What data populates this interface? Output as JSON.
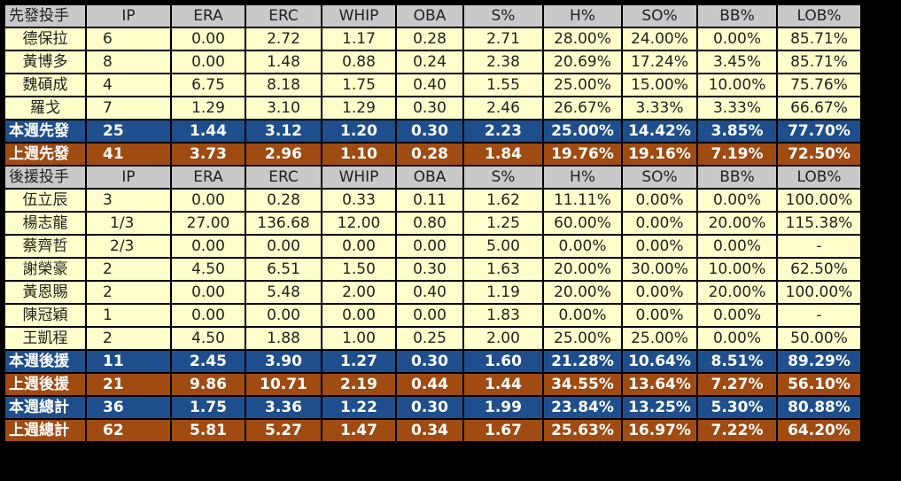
{
  "headers": {
    "starters": [
      "先發投手",
      "IP",
      "ERA",
      "ERC",
      "WHIP",
      "OBA",
      "S%",
      "H%",
      "SO%",
      "BB%",
      "LOB%"
    ],
    "relievers": [
      "後援投手",
      "IP",
      "ERA",
      "ERC",
      "WHIP",
      "OBA",
      "S%",
      "H%",
      "SO%",
      "BB%",
      "LOB%"
    ]
  },
  "starters": [
    [
      "德保拉",
      "6",
      "0.00",
      "2.72",
      "1.17",
      "0.28",
      "2.71",
      "28.00%",
      "24.00%",
      "0.00%",
      "85.71%"
    ],
    [
      "黃博多",
      "8",
      "0.00",
      "1.48",
      "0.88",
      "0.24",
      "2.38",
      "20.69%",
      "17.24%",
      "3.45%",
      "85.71%"
    ],
    [
      "魏碩成",
      "4",
      "6.75",
      "8.18",
      "1.75",
      "0.40",
      "1.55",
      "25.00%",
      "15.00%",
      "10.00%",
      "75.76%"
    ],
    [
      "羅戈",
      "7",
      "1.29",
      "3.10",
      "1.29",
      "0.30",
      "2.46",
      "26.67%",
      "3.33%",
      "3.33%",
      "66.67%"
    ]
  ],
  "starters_this_week": [
    "本週先發",
    "25",
    "1.44",
    "3.12",
    "1.20",
    "0.30",
    "2.23",
    "25.00%",
    "14.42%",
    "3.85%",
    "77.70%"
  ],
  "starters_last_week": [
    "上週先發",
    "41",
    "3.73",
    "2.96",
    "1.10",
    "0.28",
    "1.84",
    "19.76%",
    "19.16%",
    "7.19%",
    "72.50%"
  ],
  "relievers": [
    [
      "伍立辰",
      "3",
      "0.00",
      "0.28",
      "0.33",
      "0.11",
      "1.62",
      "11.11%",
      "0.00%",
      "0.00%",
      "100.00%"
    ],
    [
      "楊志龍",
      "1/3",
      "27.00",
      "136.68",
      "12.00",
      "0.80",
      "1.25",
      "60.00%",
      "0.00%",
      "20.00%",
      "115.38%"
    ],
    [
      "蔡齊哲",
      "2/3",
      "0.00",
      "0.00",
      "0.00",
      "0.00",
      "5.00",
      "0.00%",
      "0.00%",
      "0.00%",
      "-"
    ],
    [
      "謝榮豪",
      "2",
      "4.50",
      "6.51",
      "1.50",
      "0.30",
      "1.63",
      "20.00%",
      "30.00%",
      "10.00%",
      "62.50%"
    ],
    [
      "黃恩賜",
      "2",
      "0.00",
      "5.48",
      "2.00",
      "0.40",
      "1.19",
      "20.00%",
      "0.00%",
      "20.00%",
      "100.00%"
    ],
    [
      "陳冠穎",
      "1",
      "0.00",
      "0.00",
      "0.00",
      "0.00",
      "1.83",
      "0.00%",
      "0.00%",
      "0.00%",
      "-"
    ],
    [
      "王凱程",
      "2",
      "4.50",
      "1.88",
      "1.00",
      "0.25",
      "2.00",
      "25.00%",
      "25.00%",
      "0.00%",
      "50.00%"
    ]
  ],
  "relievers_this_week": [
    "本週後援",
    "11",
    "2.45",
    "3.90",
    "1.27",
    "0.30",
    "1.60",
    "21.28%",
    "10.64%",
    "8.51%",
    "89.29%"
  ],
  "relievers_last_week": [
    "上週後援",
    "21",
    "9.86",
    "10.71",
    "2.19",
    "0.44",
    "1.44",
    "34.55%",
    "13.64%",
    "7.27%",
    "56.10%"
  ],
  "total_this_week": [
    "本週總計",
    "36",
    "1.75",
    "3.36",
    "1.22",
    "0.30",
    "1.99",
    "23.84%",
    "13.25%",
    "5.30%",
    "80.88%"
  ],
  "total_last_week": [
    "上週總計",
    "62",
    "5.81",
    "5.27",
    "1.47",
    "0.34",
    "1.67",
    "25.63%",
    "16.97%",
    "7.22%",
    "64.20%"
  ],
  "colors": {
    "header_bg": "#c9c9c9",
    "player_bg": "#ffffcc",
    "this_week_bg": "#1f4e8c",
    "last_week_bg": "#a04b12",
    "border": "#000000"
  }
}
